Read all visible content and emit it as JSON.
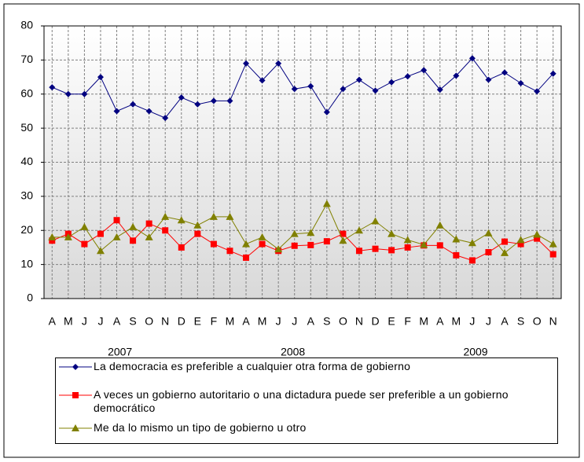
{
  "chart_data": {
    "type": "line",
    "categories": [
      "A",
      "M",
      "J",
      "J",
      "A",
      "S",
      "O",
      "N",
      "D",
      "E",
      "F",
      "M",
      "A",
      "M",
      "J",
      "J",
      "A",
      "S",
      "O",
      "N",
      "D",
      "E",
      "F",
      "M",
      "A",
      "M",
      "J",
      "J",
      "A",
      "S",
      "O",
      "N"
    ],
    "groups": [
      "2007",
      "2008",
      "2009"
    ],
    "series": [
      {
        "name": "La democracia es preferible a cualquier otra forma de gobierno",
        "color": "#000080",
        "marker": "diamond",
        "values": [
          62,
          60,
          60,
          65,
          55,
          57,
          55,
          53,
          59,
          57,
          58,
          58,
          69,
          64,
          69,
          61.5,
          62.3,
          54.7,
          61.5,
          64.2,
          61,
          63.5,
          65.2,
          67,
          61.3,
          65.4,
          70.5,
          64.2,
          66.3,
          63.2,
          60.8,
          66
        ]
      },
      {
        "name": "A veces un gobierno autoritario o una dictadura puede ser preferible a un gobierno democrático",
        "color": "#ff0000",
        "marker": "square",
        "values": [
          17,
          19,
          16,
          19,
          23,
          17,
          22,
          20,
          15,
          19,
          16,
          14,
          12,
          16,
          14,
          15.5,
          15.7,
          16.8,
          19,
          14,
          14.6,
          14.2,
          15,
          15.6,
          15.6,
          12.7,
          11.2,
          13.6,
          16.7,
          16,
          17.6,
          13
        ]
      },
      {
        "name": "Me da lo mismo un tipo de gobierno u otro",
        "color": "#808000",
        "marker": "triangle",
        "values": [
          18,
          18,
          21,
          14,
          18,
          21,
          18,
          24,
          23,
          21.5,
          24,
          24,
          16,
          18,
          14.5,
          19,
          19.3,
          27.8,
          17,
          20,
          22.7,
          19,
          17.2,
          15.8,
          21.5,
          17.4,
          16.3,
          19.2,
          13.4,
          17.2,
          18.8,
          16
        ]
      }
    ],
    "ylim": [
      0,
      80
    ],
    "yticks": [
      0,
      10,
      20,
      30,
      40,
      50,
      60,
      70,
      80
    ],
    "grid": true
  }
}
